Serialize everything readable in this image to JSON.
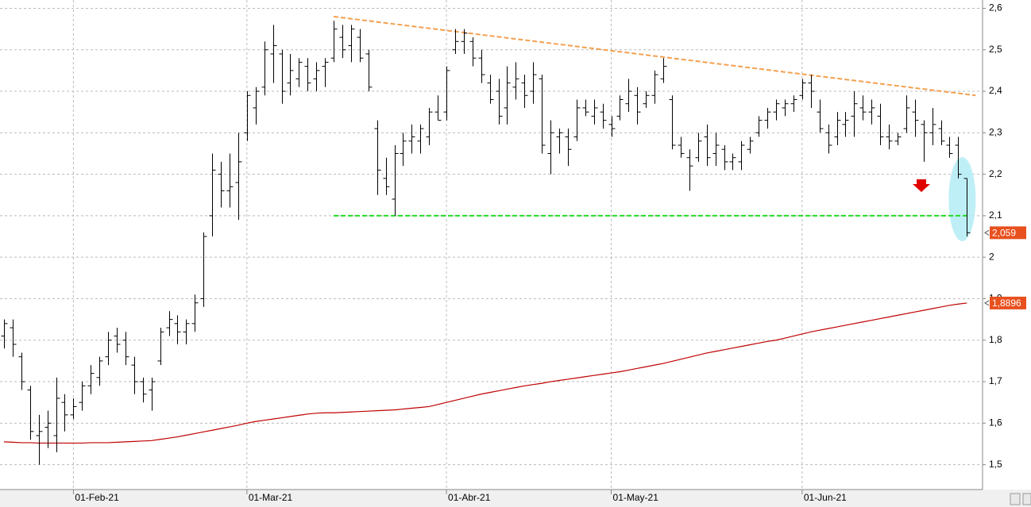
{
  "chart_data": {
    "type": "ohlc",
    "xlim": [
      -0.46,
      112.8
    ],
    "ylim": [
      1.44,
      2.62
    ],
    "grid": true,
    "open": [
      1.81,
      1.83,
      1.76,
      1.68,
      1.57,
      1.59,
      1.57,
      1.65,
      1.62,
      1.65,
      1.69,
      1.71,
      1.76,
      1.81,
      1.8,
      1.74,
      1.7,
      1.68,
      1.75,
      1.83,
      1.84,
      1.82,
      1.84,
      1.9,
      2.1,
      2.2,
      2.16,
      2.18,
      2.3,
      2.36,
      2.41,
      2.49,
      2.49,
      2.42,
      2.43,
      2.46,
      2.43,
      2.46,
      2.48,
      2.53,
      2.51,
      2.53,
      2.49,
      2.31,
      2.19,
      2.14,
      2.25,
      2.28,
      2.28,
      2.29,
      2.35,
      2.35,
      2.5,
      2.52,
      2.52,
      2.48,
      2.42,
      2.4,
      2.36,
      2.41,
      2.42,
      2.4,
      2.43,
      2.25,
      2.29,
      2.29,
      2.29,
      2.36,
      2.34,
      2.35,
      2.32,
      2.34,
      2.37,
      2.39,
      2.37,
      2.39,
      2.43,
      2.38,
      2.27,
      2.24,
      2.24,
      2.29,
      2.25,
      2.26,
      2.23,
      2.23,
      2.26,
      2.3,
      2.33,
      2.35,
      2.36,
      2.37,
      2.39,
      2.42,
      2.35,
      2.3,
      2.29,
      2.32,
      2.34,
      2.36,
      2.35,
      2.34,
      2.29,
      2.28,
      2.31,
      2.35,
      2.32,
      2.3,
      2.31,
      2.27,
      2.27,
      2.19
    ],
    "high": [
      1.85,
      1.85,
      1.77,
      1.69,
      1.62,
      1.63,
      1.71,
      1.67,
      1.66,
      1.7,
      1.74,
      1.76,
      1.82,
      1.83,
      1.82,
      1.76,
      1.71,
      1.71,
      1.83,
      1.87,
      1.86,
      1.85,
      1.91,
      2.06,
      2.25,
      2.23,
      2.25,
      2.3,
      2.4,
      2.41,
      2.52,
      2.56,
      2.5,
      2.49,
      2.48,
      2.48,
      2.47,
      2.48,
      2.57,
      2.56,
      2.56,
      2.55,
      2.5,
      2.33,
      2.24,
      2.27,
      2.3,
      2.32,
      2.32,
      2.36,
      2.39,
      2.46,
      2.55,
      2.55,
      2.53,
      2.5,
      2.44,
      2.43,
      2.46,
      2.47,
      2.44,
      2.47,
      2.44,
      2.33,
      2.31,
      2.31,
      2.38,
      2.38,
      2.38,
      2.37,
      2.34,
      2.39,
      2.43,
      2.41,
      2.4,
      2.45,
      2.48,
      2.39,
      2.29,
      2.26,
      2.3,
      2.32,
      2.3,
      2.27,
      2.25,
      2.28,
      2.29,
      2.34,
      2.36,
      2.38,
      2.38,
      2.39,
      2.43,
      2.44,
      2.38,
      2.32,
      2.35,
      2.35,
      2.4,
      2.39,
      2.38,
      2.37,
      2.32,
      2.3,
      2.39,
      2.38,
      2.33,
      2.36,
      2.33,
      2.29,
      2.29,
      2.19
    ],
    "low": [
      1.78,
      1.76,
      1.68,
      1.56,
      1.5,
      1.54,
      1.53,
      1.58,
      1.61,
      1.63,
      1.67,
      1.69,
      1.74,
      1.77,
      1.74,
      1.67,
      1.65,
      1.63,
      1.74,
      1.81,
      1.79,
      1.79,
      1.82,
      1.88,
      2.05,
      2.12,
      2.12,
      2.09,
      2.28,
      2.32,
      2.39,
      2.42,
      2.37,
      2.39,
      2.41,
      2.4,
      2.4,
      2.41,
      2.47,
      2.48,
      2.47,
      2.47,
      2.4,
      2.15,
      2.15,
      2.1,
      2.22,
      2.25,
      2.25,
      2.27,
      2.33,
      2.33,
      2.49,
      2.49,
      2.46,
      2.42,
      2.37,
      2.32,
      2.32,
      2.38,
      2.36,
      2.37,
      2.25,
      2.2,
      2.25,
      2.22,
      2.28,
      2.34,
      2.32,
      2.31,
      2.29,
      2.33,
      2.35,
      2.32,
      2.36,
      2.37,
      2.42,
      2.26,
      2.24,
      2.16,
      2.23,
      2.22,
      2.22,
      2.21,
      2.21,
      2.21,
      2.25,
      2.29,
      2.31,
      2.33,
      2.34,
      2.35,
      2.38,
      2.36,
      2.3,
      2.25,
      2.27,
      2.29,
      2.29,
      2.33,
      2.32,
      2.27,
      2.26,
      2.27,
      2.3,
      2.29,
      2.23,
      2.27,
      2.27,
      2.24,
      2.19,
      2.05
    ],
    "close": [
      1.84,
      1.79,
      1.7,
      1.58,
      1.58,
      1.6,
      1.66,
      1.62,
      1.64,
      1.69,
      1.72,
      1.75,
      1.8,
      1.79,
      1.76,
      1.7,
      1.67,
      1.7,
      1.82,
      1.85,
      1.82,
      1.84,
      1.89,
      2.05,
      2.21,
      2.16,
      2.17,
      2.23,
      2.39,
      2.4,
      2.5,
      2.51,
      2.4,
      2.45,
      2.47,
      2.42,
      2.45,
      2.47,
      2.55,
      2.5,
      2.55,
      2.48,
      2.41,
      2.21,
      2.17,
      2.25,
      2.28,
      2.29,
      2.31,
      2.35,
      2.33,
      2.45,
      2.52,
      2.54,
      2.48,
      2.44,
      2.38,
      2.34,
      2.42,
      2.43,
      2.39,
      2.44,
      2.27,
      2.3,
      2.3,
      2.26,
      2.36,
      2.35,
      2.36,
      2.33,
      2.31,
      2.38,
      2.4,
      2.35,
      2.39,
      2.44,
      2.46,
      2.27,
      2.25,
      2.22,
      2.28,
      2.24,
      2.27,
      2.23,
      2.24,
      2.27,
      2.28,
      2.33,
      2.35,
      2.37,
      2.37,
      2.38,
      2.42,
      2.4,
      2.31,
      2.27,
      2.33,
      2.33,
      2.37,
      2.35,
      2.36,
      2.29,
      2.28,
      2.29,
      2.36,
      2.33,
      2.3,
      2.32,
      2.28,
      2.25,
      2.2,
      2.059
    ],
    "close_value_label": "2,059",
    "moving_average": {
      "color": "#c00000",
      "value_label": "1,8896",
      "values": [
        1.555,
        1.554,
        1.553,
        1.553,
        1.552,
        1.552,
        1.552,
        1.552,
        1.552,
        1.552,
        1.553,
        1.553,
        1.553,
        1.554,
        1.555,
        1.556,
        1.557,
        1.558,
        1.561,
        1.564,
        1.567,
        1.571,
        1.575,
        1.579,
        1.583,
        1.587,
        1.591,
        1.595,
        1.6,
        1.604,
        1.607,
        1.61,
        1.613,
        1.616,
        1.619,
        1.622,
        1.624,
        1.625,
        1.625,
        1.626,
        1.627,
        1.628,
        1.629,
        1.63,
        1.631,
        1.632,
        1.634,
        1.636,
        1.638,
        1.64,
        1.645,
        1.65,
        1.655,
        1.66,
        1.665,
        1.67,
        1.674,
        1.678,
        1.682,
        1.686,
        1.69,
        1.693,
        1.696,
        1.7,
        1.703,
        1.706,
        1.709,
        1.712,
        1.715,
        1.718,
        1.721,
        1.724,
        1.728,
        1.732,
        1.736,
        1.74,
        1.744,
        1.749,
        1.754,
        1.759,
        1.764,
        1.769,
        1.773,
        1.777,
        1.781,
        1.785,
        1.789,
        1.793,
        1.797,
        1.8,
        1.805,
        1.81,
        1.815,
        1.82,
        1.824,
        1.828,
        1.832,
        1.836,
        1.84,
        1.844,
        1.848,
        1.852,
        1.856,
        1.86,
        1.864,
        1.868,
        1.872,
        1.876,
        1.88,
        1.884,
        1.887,
        1.8896
      ]
    },
    "trendlines": [
      {
        "color": "#f4a050",
        "x": [
          38,
          112
        ],
        "y": [
          2.58,
          2.39
        ]
      },
      {
        "color": "#22dd22",
        "x": [
          38,
          111
        ],
        "y": [
          2.1,
          2.1
        ]
      }
    ],
    "yticks": [
      {
        "value": 1.5,
        "label": "1,5"
      },
      {
        "value": 1.6,
        "label": "1,6"
      },
      {
        "value": 1.7,
        "label": "1,7"
      },
      {
        "value": 1.8,
        "label": "1,8"
      },
      {
        "value": 1.9,
        "label": "1,9"
      },
      2,
      {
        "value": 2.1,
        "label": "2,1"
      },
      {
        "value": 2.2,
        "label": "2,2"
      },
      {
        "value": 2.3,
        "label": "2,3"
      },
      {
        "value": 2.4,
        "label": "2,4"
      },
      {
        "value": 2.5,
        "label": "2,5"
      },
      {
        "value": 2.6,
        "label": "2,6"
      }
    ],
    "xticks": [
      {
        "value": 8,
        "label": "01-Feb-21"
      },
      {
        "value": 28,
        "label": "01-Mar-21"
      },
      {
        "value": 51,
        "label": "01-Abr-21"
      },
      {
        "value": 70,
        "label": "01-May-21"
      },
      {
        "value": 92,
        "label": "01-Jun-21"
      }
    ]
  }
}
